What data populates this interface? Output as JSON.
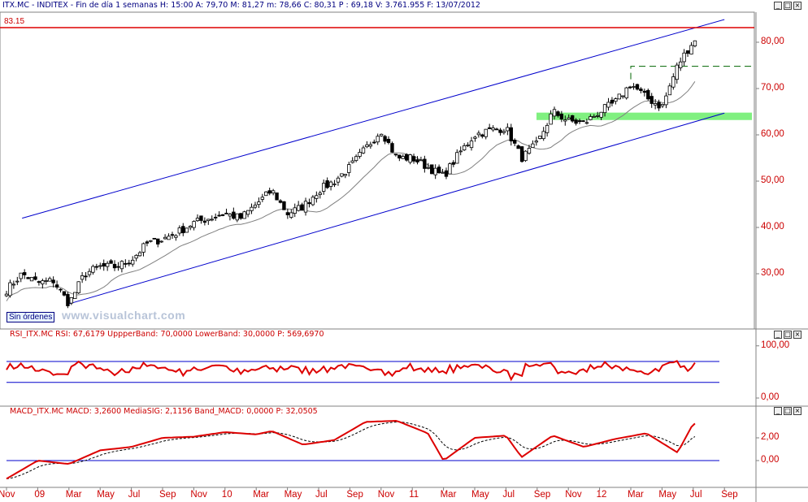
{
  "header": {
    "main": "ITX.MC - INDITEX - Fin de día 1 semanas H: 15:00  A: 79,70  M: 81,27  m: 78,66  C: 80,31  P : 69,18  V: 3.761.955  F: 13/07/2012",
    "rsi": "RSI_ITX.MC  RSI: 67,6179  UppperBand: 70,0000  LowerBand: 30,0000  P: 569,6970",
    "macd": "MACD_ITX.MC  MACD: 3,2600  MediaSIG: 2,1156  Band_MACD: 0,0000  P: 32,0505"
  },
  "window_buttons": [
    "_",
    "□",
    "×"
  ],
  "overlay": {
    "sin_ordenes": "Sin órdenes",
    "watermark": "www.visualchart.com",
    "resistance_label": "83.15"
  },
  "colors": {
    "axis": "#cc0000",
    "channel": "#0000cc",
    "resistance": "#dd0000",
    "support_zone": "#80f080",
    "rsi": "#dd0000",
    "macd": "#dd0000",
    "signal": "#000000",
    "band": "#0000cc",
    "sma": "#808080"
  },
  "chart_data": [
    {
      "type": "candlestick",
      "name": "price",
      "y_ticks": [
        "80,00",
        "70,00",
        "60,00",
        "50,00",
        "40,00",
        "30,00"
      ],
      "y_tick_values": [
        80,
        70,
        60,
        50,
        40,
        30
      ],
      "x_ticks": [
        "Nov",
        "09",
        "Mar",
        "May",
        "Jul",
        "Sep",
        "Nov",
        "10",
        "Mar",
        "May",
        "Jul",
        "Sep",
        "Nov",
        "11",
        "Mar",
        "May",
        "Jul",
        "Sep",
        "Nov",
        "12",
        "Mar",
        "May",
        "Jul",
        "Sep"
      ],
      "x_tick_dates": [
        "2008-11",
        "2009-01",
        "2009-03",
        "2009-05",
        "2009-07",
        "2009-09",
        "2009-11",
        "2010-01",
        "2010-03",
        "2010-05",
        "2010-07",
        "2010-09",
        "2010-11",
        "2011-01",
        "2011-03",
        "2011-05",
        "2011-07",
        "2011-09",
        "2011-11",
        "2012-01",
        "2012-03",
        "2012-05",
        "2012-07",
        "2012-09"
      ],
      "close_anchors": [
        [
          "2008-11",
          26.5
        ],
        [
          "2008-12",
          30.0
        ],
        [
          "2009-01",
          28.0
        ],
        [
          "2009-02",
          28.5
        ],
        [
          "2009-03",
          23.5
        ],
        [
          "2009-04",
          30.0
        ],
        [
          "2009-05",
          31.5
        ],
        [
          "2009-06",
          31.5
        ],
        [
          "2009-07",
          33.0
        ],
        [
          "2009-08",
          36.5
        ],
        [
          "2009-09",
          37.5
        ],
        [
          "2009-10",
          39.0
        ],
        [
          "2009-11",
          41.0
        ],
        [
          "2009-12",
          42.0
        ],
        [
          "2010-01",
          43.0
        ],
        [
          "2010-02",
          42.0
        ],
        [
          "2010-03",
          45.0
        ],
        [
          "2010-04",
          48.0
        ],
        [
          "2010-05",
          43.0
        ],
        [
          "2010-06",
          44.5
        ],
        [
          "2010-07",
          48.0
        ],
        [
          "2010-08",
          50.0
        ],
        [
          "2010-09",
          53.0
        ],
        [
          "2010-10",
          57.0
        ],
        [
          "2010-11",
          61.0
        ],
        [
          "2010-12",
          55.0
        ],
        [
          "2011-01",
          55.0
        ],
        [
          "2011-02",
          53.0
        ],
        [
          "2011-03",
          51.0
        ],
        [
          "2011-04",
          56.0
        ],
        [
          "2011-05",
          60.0
        ],
        [
          "2011-06",
          61.0
        ],
        [
          "2011-07",
          61.5
        ],
        [
          "2011-08",
          55.0
        ],
        [
          "2011-09",
          58.0
        ],
        [
          "2011-10",
          65.0
        ],
        [
          "2011-11",
          63.0
        ],
        [
          "2011-12",
          62.5
        ],
        [
          "2012-01",
          65.0
        ],
        [
          "2012-02",
          67.0
        ],
        [
          "2012-03",
          71.0
        ],
        [
          "2012-04",
          68.0
        ],
        [
          "2012-05",
          66.0
        ],
        [
          "2012-06",
          75.0
        ],
        [
          "2012-07",
          80.31
        ]
      ],
      "resistance": 83.15,
      "support_zone": [
        63.2,
        64.8
      ],
      "breakout_level": 74.8,
      "channel_upper": [
        [
          "2008-12",
          42.0
        ],
        [
          "2012-09",
          84.9
        ]
      ],
      "channel_lower": [
        [
          "2009-03",
          23.5
        ],
        [
          "2012-09",
          64.7
        ]
      ],
      "sma": "gray moving average"
    },
    {
      "type": "line",
      "name": "RSI",
      "y_ticks": [
        "100,00",
        "0,00"
      ],
      "y_tick_values": [
        100,
        0
      ],
      "upper_band": 70,
      "lower_band": 30,
      "last": 67.6179
    },
    {
      "type": "line",
      "name": "MACD",
      "y_ticks": [
        "2,00",
        "0,00"
      ],
      "y_tick_values": [
        2,
        0
      ],
      "macd_anchors": [
        [
          "2008-11",
          -1.6
        ],
        [
          "2009-01",
          0.0
        ],
        [
          "2009-03",
          -0.3
        ],
        [
          "2009-05",
          0.9
        ],
        [
          "2009-07",
          1.2
        ],
        [
          "2009-09",
          2.0
        ],
        [
          "2009-11",
          2.1
        ],
        [
          "2010-01",
          2.5
        ],
        [
          "2010-03",
          2.3
        ],
        [
          "2010-04",
          2.6
        ],
        [
          "2010-06",
          1.4
        ],
        [
          "2010-08",
          1.8
        ],
        [
          "2010-10",
          3.4
        ],
        [
          "2010-12",
          3.5
        ],
        [
          "2011-02",
          2.4
        ],
        [
          "2011-03",
          0.0
        ],
        [
          "2011-05",
          2.0
        ],
        [
          "2011-07",
          2.2
        ],
        [
          "2011-08",
          0.3
        ],
        [
          "2011-10",
          2.2
        ],
        [
          "2011-12",
          1.2
        ],
        [
          "2012-02",
          1.9
        ],
        [
          "2012-04",
          2.4
        ],
        [
          "2012-06",
          0.7
        ],
        [
          "2012-07",
          3.26
        ]
      ],
      "signal_last": 2.1156,
      "band": 0
    }
  ]
}
